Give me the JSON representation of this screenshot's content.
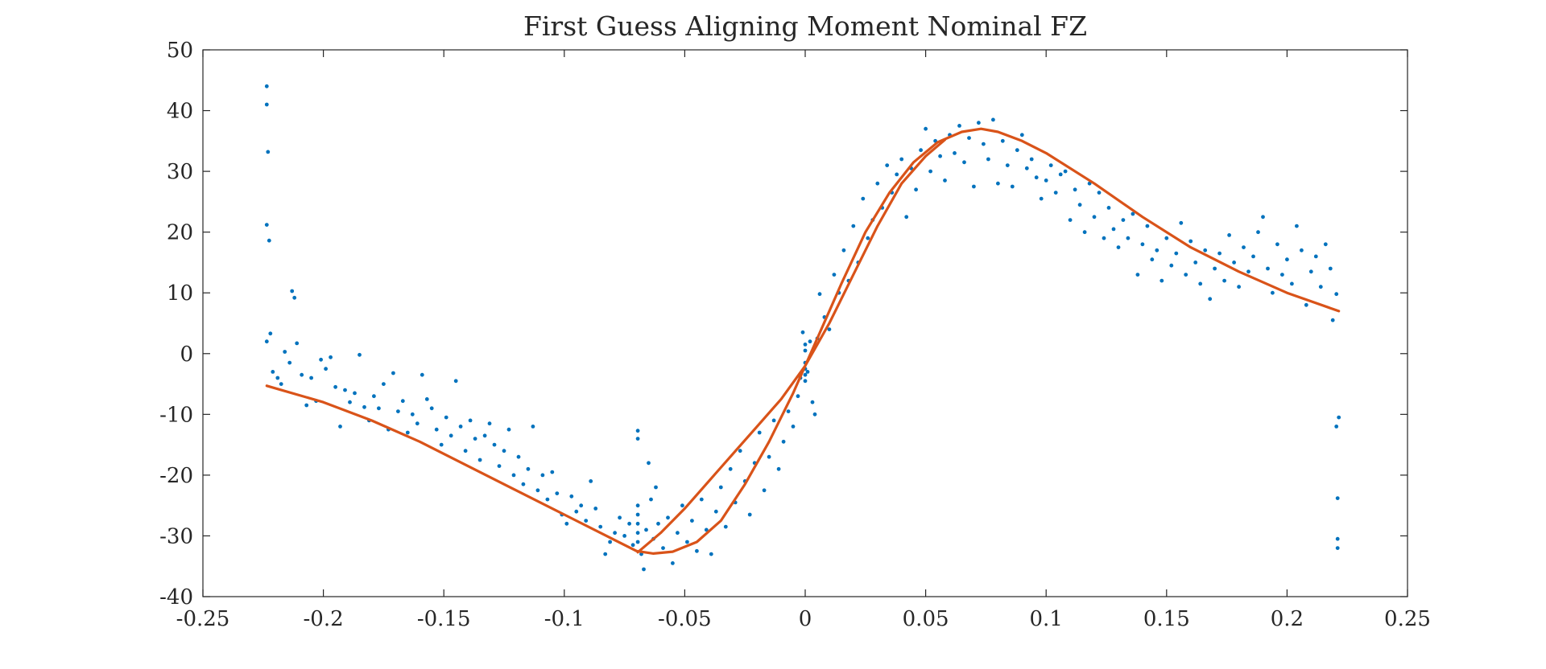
{
  "chart_data": {
    "type": "scatter",
    "title": "First Guess Aligning Moment Nominal FZ",
    "xlabel": "",
    "ylabel": "",
    "xlim": [
      -0.25,
      0.25
    ],
    "ylim": [
      -40,
      50
    ],
    "xticks": [
      -0.25,
      -0.2,
      -0.15,
      -0.1,
      -0.05,
      0,
      0.05,
      0.1,
      0.15,
      0.2,
      0.25
    ],
    "xtick_labels": [
      "-0.25",
      "-0.2",
      "-0.15",
      "-0.1",
      "-0.05",
      "0",
      "0.05",
      "0.1",
      "0.15",
      "0.2",
      "0.25"
    ],
    "yticks": [
      -40,
      -30,
      -20,
      -10,
      0,
      10,
      20,
      30,
      40,
      50
    ],
    "ytick_labels": [
      "-40",
      "-30",
      "-20",
      "-10",
      "0",
      "10",
      "20",
      "30",
      "40",
      "50"
    ],
    "grid": false,
    "legend": "none",
    "colors": {
      "scatter": "#0072BD",
      "fit": "#D95319",
      "axes": "#262626"
    },
    "series": [
      {
        "kind": "scatter",
        "points": [
          [
            -0.2235,
            44
          ],
          [
            -0.2235,
            41
          ],
          [
            -0.223,
            33.2
          ],
          [
            -0.2235,
            21.2
          ],
          [
            -0.2225,
            18.6
          ],
          [
            -0.2235,
            2
          ],
          [
            -0.222,
            3.3
          ],
          [
            -0.221,
            -3
          ],
          [
            -0.219,
            -4
          ],
          [
            -0.2175,
            -5
          ],
          [
            -0.216,
            0.3
          ],
          [
            -0.214,
            -1.5
          ],
          [
            -0.213,
            10.3
          ],
          [
            -0.212,
            9.2
          ],
          [
            -0.211,
            1.7
          ],
          [
            -0.209,
            -3.5
          ],
          [
            -0.207,
            -8.5
          ],
          [
            -0.205,
            -4
          ],
          [
            -0.203,
            -7.8
          ],
          [
            -0.201,
            -1
          ],
          [
            -0.199,
            -2.5
          ],
          [
            -0.197,
            -0.6
          ],
          [
            -0.195,
            -5.5
          ],
          [
            -0.193,
            -12
          ],
          [
            -0.191,
            -6
          ],
          [
            -0.189,
            -8
          ],
          [
            -0.187,
            -6.5
          ],
          [
            -0.185,
            -0.2
          ],
          [
            -0.183,
            -8.8
          ],
          [
            -0.181,
            -11
          ],
          [
            -0.179,
            -7
          ],
          [
            -0.177,
            -9
          ],
          [
            -0.175,
            -5
          ],
          [
            -0.173,
            -12.5
          ],
          [
            -0.171,
            -3.2
          ],
          [
            -0.169,
            -9.5
          ],
          [
            -0.167,
            -7.8
          ],
          [
            -0.165,
            -13
          ],
          [
            -0.163,
            -10
          ],
          [
            -0.161,
            -11.5
          ],
          [
            -0.159,
            -3.5
          ],
          [
            -0.157,
            -7.5
          ],
          [
            -0.155,
            -9
          ],
          [
            -0.153,
            -12.5
          ],
          [
            -0.151,
            -15
          ],
          [
            -0.149,
            -10.5
          ],
          [
            -0.147,
            -13.5
          ],
          [
            -0.145,
            -4.5
          ],
          [
            -0.143,
            -12
          ],
          [
            -0.141,
            -16
          ],
          [
            -0.139,
            -11
          ],
          [
            -0.137,
            -14
          ],
          [
            -0.135,
            -17.5
          ],
          [
            -0.133,
            -13.5
          ],
          [
            -0.131,
            -11.5
          ],
          [
            -0.129,
            -15
          ],
          [
            -0.127,
            -18.5
          ],
          [
            -0.125,
            -16
          ],
          [
            -0.123,
            -12.5
          ],
          [
            -0.121,
            -20
          ],
          [
            -0.119,
            -17
          ],
          [
            -0.117,
            -21.5
          ],
          [
            -0.115,
            -19
          ],
          [
            -0.113,
            -12
          ],
          [
            -0.111,
            -22.5
          ],
          [
            -0.109,
            -20
          ],
          [
            -0.107,
            -24
          ],
          [
            -0.105,
            -19.5
          ],
          [
            -0.103,
            -23
          ],
          [
            -0.101,
            -26.5
          ],
          [
            -0.099,
            -28
          ],
          [
            -0.097,
            -23.5
          ],
          [
            -0.095,
            -26
          ],
          [
            -0.093,
            -25
          ],
          [
            -0.091,
            -27.5
          ],
          [
            -0.089,
            -21
          ],
          [
            -0.087,
            -25.5
          ],
          [
            -0.085,
            -28.5
          ],
          [
            -0.083,
            -33
          ],
          [
            -0.081,
            -31
          ],
          [
            -0.079,
            -29.5
          ],
          [
            -0.077,
            -27
          ],
          [
            -0.075,
            -30
          ],
          [
            -0.073,
            -28
          ],
          [
            -0.0715,
            -31.5
          ],
          [
            -0.0695,
            -12.7
          ],
          [
            -0.0695,
            -14
          ],
          [
            -0.0695,
            -25
          ],
          [
            -0.0695,
            -26.5
          ],
          [
            -0.0695,
            -28
          ],
          [
            -0.0695,
            -29.5
          ],
          [
            -0.0695,
            -31
          ],
          [
            -0.068,
            -33
          ],
          [
            -0.067,
            -35.5
          ],
          [
            -0.066,
            -29
          ],
          [
            -0.065,
            -18
          ],
          [
            -0.064,
            -24
          ],
          [
            -0.063,
            -30.5
          ],
          [
            -0.062,
            -22
          ],
          [
            -0.061,
            -28
          ],
          [
            -0.059,
            -32
          ],
          [
            -0.057,
            -27
          ],
          [
            -0.055,
            -34.5
          ],
          [
            -0.053,
            -29.5
          ],
          [
            -0.051,
            -25
          ],
          [
            -0.049,
            -31
          ],
          [
            -0.047,
            -27.5
          ],
          [
            -0.045,
            -32.5
          ],
          [
            -0.043,
            -24
          ],
          [
            -0.041,
            -29
          ],
          [
            -0.039,
            -33
          ],
          [
            -0.037,
            -26
          ],
          [
            -0.035,
            -22
          ],
          [
            -0.033,
            -28.5
          ],
          [
            -0.031,
            -19
          ],
          [
            -0.029,
            -24.5
          ],
          [
            -0.027,
            -16
          ],
          [
            -0.025,
            -21
          ],
          [
            -0.023,
            -26.5
          ],
          [
            -0.021,
            -18
          ],
          [
            -0.019,
            -13
          ],
          [
            -0.017,
            -22.5
          ],
          [
            -0.015,
            -17
          ],
          [
            -0.013,
            -11
          ],
          [
            -0.011,
            -19
          ],
          [
            -0.009,
            -14.5
          ],
          [
            -0.007,
            -9.5
          ],
          [
            -0.005,
            -12
          ],
          [
            -0.003,
            -7
          ],
          [
            -0.002,
            -4
          ],
          [
            -0.001,
            3.5
          ],
          [
            0,
            -1.5
          ],
          [
            0,
            -2.5
          ],
          [
            0,
            -3.5
          ],
          [
            0,
            -4.5
          ],
          [
            0,
            0.5
          ],
          [
            0,
            1.5
          ],
          [
            0.001,
            -3
          ],
          [
            0.002,
            2
          ],
          [
            0.003,
            -8
          ],
          [
            0.004,
            -10
          ],
          [
            0.005,
            2.5
          ],
          [
            0.006,
            9.8
          ],
          [
            0.008,
            6
          ],
          [
            0.01,
            4
          ],
          [
            0.012,
            13
          ],
          [
            0.014,
            10
          ],
          [
            0.016,
            17
          ],
          [
            0.018,
            12
          ],
          [
            0.02,
            21
          ],
          [
            0.022,
            15
          ],
          [
            0.024,
            25.5
          ],
          [
            0.026,
            19
          ],
          [
            0.028,
            22
          ],
          [
            0.03,
            28
          ],
          [
            0.032,
            24
          ],
          [
            0.034,
            31
          ],
          [
            0.036,
            26.5
          ],
          [
            0.038,
            29.5
          ],
          [
            0.04,
            32
          ],
          [
            0.042,
            22.5
          ],
          [
            0.044,
            30.5
          ],
          [
            0.046,
            27
          ],
          [
            0.048,
            33.5
          ],
          [
            0.05,
            37
          ],
          [
            0.052,
            30
          ],
          [
            0.054,
            35
          ],
          [
            0.056,
            32.5
          ],
          [
            0.058,
            28.5
          ],
          [
            0.06,
            36
          ],
          [
            0.062,
            33
          ],
          [
            0.064,
            37.5
          ],
          [
            0.066,
            31.5
          ],
          [
            0.068,
            35.5
          ],
          [
            0.07,
            27.5
          ],
          [
            0.072,
            38
          ],
          [
            0.074,
            34.5
          ],
          [
            0.076,
            32
          ],
          [
            0.078,
            38.5
          ],
          [
            0.08,
            28
          ],
          [
            0.082,
            35
          ],
          [
            0.084,
            31
          ],
          [
            0.086,
            27.5
          ],
          [
            0.088,
            33.5
          ],
          [
            0.09,
            36
          ],
          [
            0.092,
            30.5
          ],
          [
            0.094,
            32
          ],
          [
            0.096,
            29
          ],
          [
            0.098,
            25.5
          ],
          [
            0.1,
            28.5
          ],
          [
            0.102,
            31
          ],
          [
            0.104,
            26.5
          ],
          [
            0.106,
            29.5
          ],
          [
            0.108,
            30
          ],
          [
            0.11,
            22
          ],
          [
            0.112,
            27
          ],
          [
            0.114,
            24.5
          ],
          [
            0.116,
            20
          ],
          [
            0.118,
            28
          ],
          [
            0.12,
            22.5
          ],
          [
            0.122,
            26.5
          ],
          [
            0.124,
            19
          ],
          [
            0.126,
            24
          ],
          [
            0.128,
            20.5
          ],
          [
            0.13,
            17.5
          ],
          [
            0.132,
            22
          ],
          [
            0.134,
            19
          ],
          [
            0.136,
            23
          ],
          [
            0.138,
            13
          ],
          [
            0.14,
            18
          ],
          [
            0.142,
            21
          ],
          [
            0.144,
            15.5
          ],
          [
            0.146,
            17
          ],
          [
            0.148,
            12
          ],
          [
            0.15,
            19
          ],
          [
            0.152,
            14.5
          ],
          [
            0.154,
            16.5
          ],
          [
            0.156,
            21.5
          ],
          [
            0.158,
            13
          ],
          [
            0.16,
            18.5
          ],
          [
            0.162,
            15
          ],
          [
            0.164,
            11.5
          ],
          [
            0.166,
            17
          ],
          [
            0.168,
            9
          ],
          [
            0.17,
            14
          ],
          [
            0.172,
            16.5
          ],
          [
            0.174,
            12
          ],
          [
            0.176,
            19.5
          ],
          [
            0.178,
            15
          ],
          [
            0.18,
            11
          ],
          [
            0.182,
            17.5
          ],
          [
            0.184,
            13.5
          ],
          [
            0.186,
            16
          ],
          [
            0.188,
            20
          ],
          [
            0.19,
            22.5
          ],
          [
            0.192,
            14
          ],
          [
            0.194,
            10
          ],
          [
            0.196,
            18
          ],
          [
            0.198,
            13
          ],
          [
            0.2,
            15.5
          ],
          [
            0.202,
            11.5
          ],
          [
            0.204,
            21
          ],
          [
            0.206,
            17
          ],
          [
            0.208,
            8
          ],
          [
            0.21,
            13.5
          ],
          [
            0.212,
            16
          ],
          [
            0.214,
            11
          ],
          [
            0.216,
            18
          ],
          [
            0.218,
            14
          ],
          [
            0.219,
            5.5
          ],
          [
            0.2205,
            9.8
          ],
          [
            0.2215,
            -10.5
          ],
          [
            0.2205,
            -12
          ],
          [
            0.221,
            -23.8
          ],
          [
            0.221,
            -30.5
          ],
          [
            0.221,
            -32
          ]
        ]
      },
      {
        "kind": "line",
        "points": [
          [
            -0.2235,
            -5.3
          ],
          [
            -0.2,
            -8
          ],
          [
            -0.18,
            -11
          ],
          [
            -0.16,
            -14.5
          ],
          [
            -0.14,
            -18.5
          ],
          [
            -0.12,
            -22.5
          ],
          [
            -0.1,
            -26.5
          ],
          [
            -0.08,
            -30.5
          ],
          [
            -0.07,
            -32.5
          ],
          [
            -0.063,
            -32.9
          ],
          [
            -0.055,
            -32.6
          ],
          [
            -0.045,
            -31
          ],
          [
            -0.035,
            -27.5
          ],
          [
            -0.025,
            -21.5
          ],
          [
            -0.015,
            -14.5
          ],
          [
            -0.005,
            -6.5
          ],
          [
            0,
            -2
          ],
          [
            0.005,
            2.5
          ],
          [
            0.015,
            11.5
          ],
          [
            0.025,
            20
          ],
          [
            0.035,
            26.5
          ],
          [
            0.045,
            31.5
          ],
          [
            0.055,
            34.8
          ],
          [
            0.065,
            36.5
          ],
          [
            0.073,
            37
          ],
          [
            0.08,
            36.5
          ],
          [
            0.09,
            35
          ],
          [
            0.1,
            33
          ],
          [
            0.12,
            28
          ],
          [
            0.14,
            22.5
          ],
          [
            0.16,
            17.5
          ],
          [
            0.18,
            13.5
          ],
          [
            0.2,
            10
          ],
          [
            0.2215,
            7
          ]
        ]
      },
      {
        "kind": "line",
        "points": [
          [
            -0.0695,
            -32.7
          ],
          [
            -0.06,
            -29.5
          ],
          [
            -0.05,
            -25.5
          ],
          [
            -0.04,
            -21
          ],
          [
            -0.03,
            -16.5
          ],
          [
            -0.02,
            -12
          ],
          [
            -0.01,
            -7.5
          ],
          [
            0,
            -2
          ],
          [
            0.01,
            5
          ],
          [
            0.02,
            13
          ],
          [
            0.03,
            21
          ],
          [
            0.04,
            28
          ],
          [
            0.05,
            32.5
          ],
          [
            0.058,
            35.2
          ]
        ]
      }
    ]
  }
}
